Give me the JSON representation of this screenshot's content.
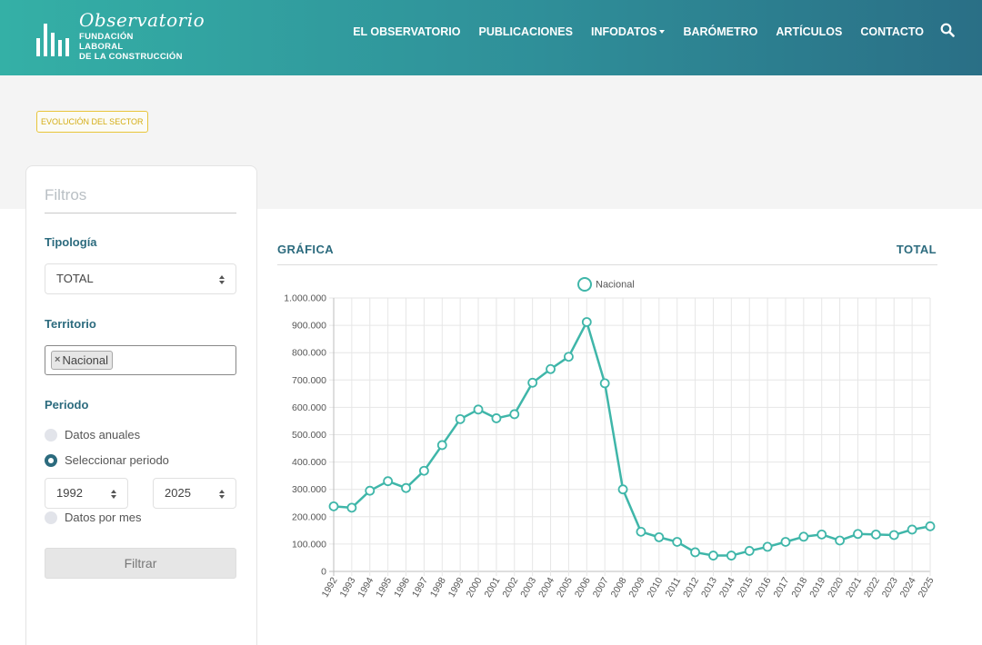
{
  "header": {
    "logo": {
      "script": "Observatorio",
      "line1": "FUNDACIÓN",
      "line2": "LABORAL",
      "line3": "DE LA CONSTRUCCIÓN"
    },
    "nav": [
      "EL OBSERVATORIO",
      "PUBLICACIONES",
      "INFODATOS",
      "BARÓMETRO",
      "ARTÍCULOS",
      "CONTACTO"
    ]
  },
  "section_badge": "EVOLUCIÓN DEL SECTOR",
  "filters": {
    "title": "Filtros",
    "tipologia_label": "Tipología",
    "tipologia_value": "TOTAL",
    "territorio_label": "Territorio",
    "territorio_chip": "Nacional",
    "periodo_label": "Periodo",
    "radio_anuales": "Datos anuales",
    "radio_periodo": "Seleccionar periodo",
    "year_from": "1992",
    "year_to": "2025",
    "radio_mes": "Datos por mes",
    "button": "Filtrar"
  },
  "chart_header": {
    "left": "GRÁFICA",
    "right": "TOTAL"
  },
  "colors": {
    "accent": "#3fb6a9",
    "heading": "#2c6b7e",
    "badge": "#d4ad14"
  },
  "chart_data": {
    "type": "line",
    "title": "",
    "xlabel": "",
    "ylabel": "",
    "ylim": [
      0,
      1000000
    ],
    "yticks": [
      "0",
      "100.000",
      "200.000",
      "300.000",
      "400.000",
      "500.000",
      "600.000",
      "700.000",
      "800.000",
      "900.000",
      "1.000.000"
    ],
    "legend": "top-center",
    "grid": true,
    "categories": [
      "1992",
      "1993",
      "1994",
      "1995",
      "1996",
      "1997",
      "1998",
      "1999",
      "2000",
      "2001",
      "2002",
      "2003",
      "2004",
      "2005",
      "2006",
      "2007",
      "2008",
      "2009",
      "2010",
      "2011",
      "2012",
      "2013",
      "2014",
      "2015",
      "2016",
      "2017",
      "2018",
      "2019",
      "2020",
      "2021",
      "2022",
      "2023",
      "2024",
      "2025"
    ],
    "series": [
      {
        "name": "Nacional",
        "values": [
          238000,
          233000,
          295000,
          330000,
          305000,
          368000,
          462000,
          557000,
          592000,
          560000,
          575000,
          690000,
          740000,
          785000,
          912000,
          688000,
          300000,
          145000,
          125000,
          108000,
          70000,
          58000,
          58000,
          75000,
          90000,
          108000,
          127000,
          135000,
          113000,
          137000,
          135000,
          133000,
          153000,
          165000
        ]
      }
    ]
  }
}
